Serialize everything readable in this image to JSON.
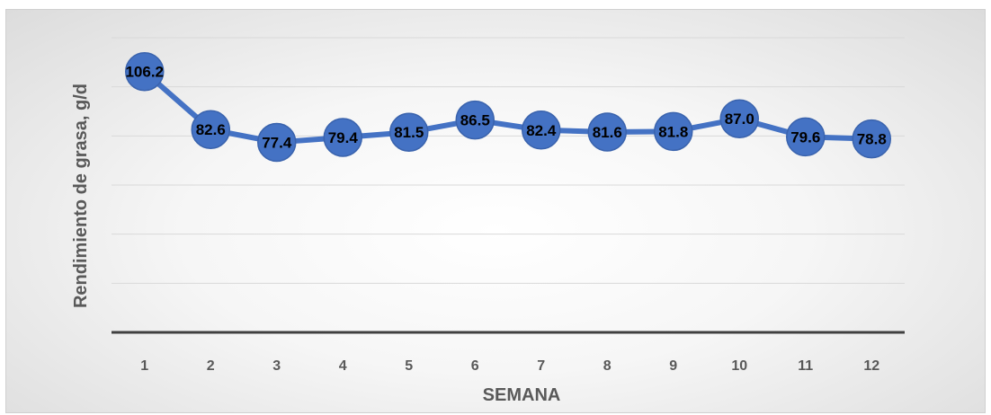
{
  "chart_data": {
    "type": "line",
    "title": "",
    "xlabel": "SEMANA",
    "ylabel": "Rendimiento de grasa, g/d",
    "categories": [
      "1",
      "2",
      "3",
      "4",
      "5",
      "6",
      "7",
      "8",
      "9",
      "10",
      "11",
      "12"
    ],
    "series": [
      {
        "values": [
          106.2,
          82.6,
          77.4,
          79.4,
          81.5,
          86.5,
          82.4,
          81.6,
          81.8,
          87.0,
          79.6,
          78.8
        ]
      }
    ],
    "ylim": [
      0,
      120
    ],
    "y_gridlines": [
      20,
      40,
      60,
      80,
      100,
      120
    ],
    "grid": true,
    "y_tick_labels_shown": false,
    "legend": "none",
    "colors": {
      "line": "#4472C4",
      "marker": "#4472C4",
      "grid": "#d9d9d9",
      "axis": "#404040"
    }
  }
}
